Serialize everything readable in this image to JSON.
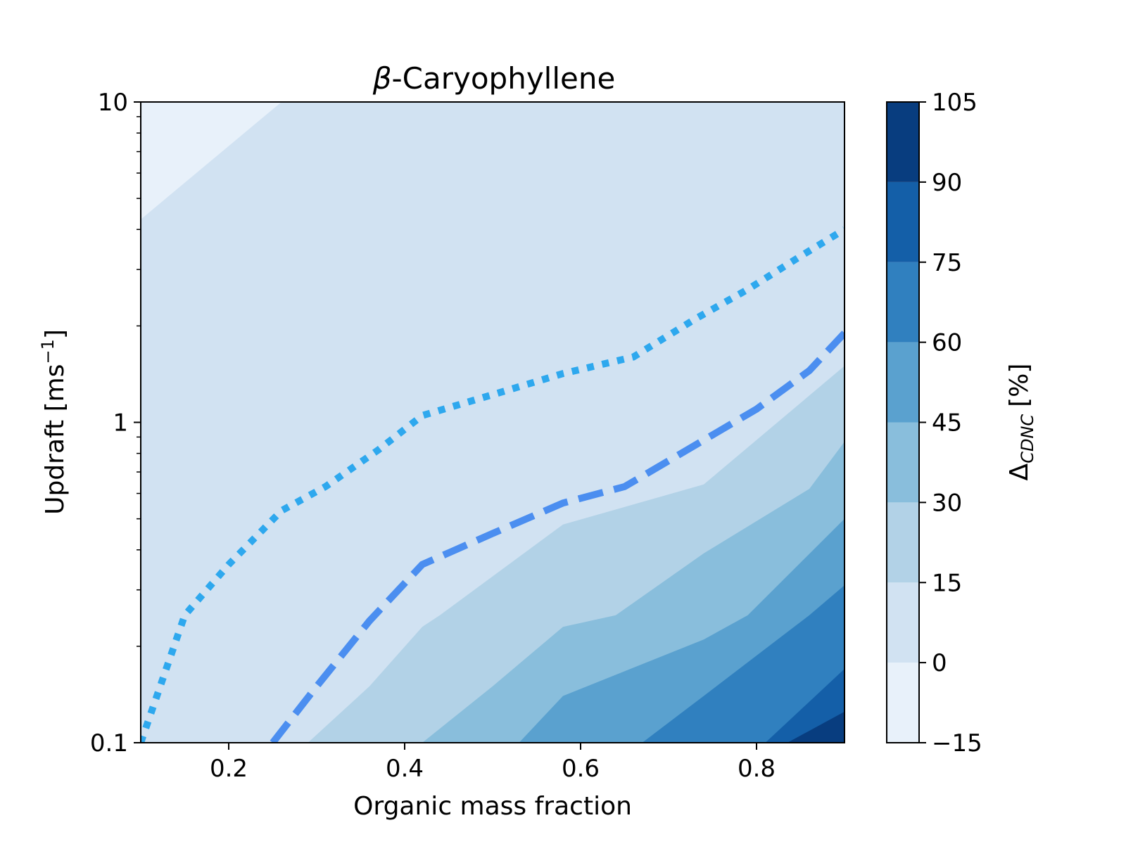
{
  "chart_data": {
    "type": "contourf",
    "title": {
      "italic_prefix": "β",
      "text": "-Caryophyllene"
    },
    "xlabel": "Organic mass fraction",
    "ylabel": {
      "text": "Updraft [ms",
      "sup": "−1",
      "close": "]"
    },
    "xlim": [
      0.1,
      0.9
    ],
    "ylim": [
      0.1,
      10
    ],
    "yscale": "log",
    "x_ticks": [
      0.2,
      0.4,
      0.6,
      0.8
    ],
    "x_tick_labels": [
      "0.2",
      "0.4",
      "0.6",
      "0.8"
    ],
    "y_ticks": [
      0.1,
      1,
      10
    ],
    "y_tick_labels": [
      "0.1",
      "1",
      "10"
    ],
    "colorbar": {
      "label_main": "Δ",
      "label_sub": "CDNC",
      "label_unit": "[%]",
      "levels": [
        -15,
        0,
        15,
        30,
        45,
        60,
        75,
        90,
        105
      ],
      "tick_labels": [
        "−15",
        "0",
        "15",
        "30",
        "45",
        "60",
        "75",
        "90",
        "105"
      ],
      "colors": [
        "#e8f1fa",
        "#d1e2f2",
        "#b2d2e7",
        "#89bedc",
        "#5aa1cf",
        "#3080bf",
        "#145fa8",
        "#083d7f"
      ]
    },
    "filled_levels": [
      {
        "range": [
          -15,
          0
        ],
        "color": "#e8f1fa",
        "boundary": [
          [
            0.1,
            4.3
          ],
          [
            0.26,
            10
          ]
        ]
      },
      {
        "range": [
          0,
          15
        ],
        "color": "#d1e2f2",
        "boundary": [
          [
            0.15,
            0.1
          ],
          [
            0.2,
            0.16
          ],
          [
            0.26,
            0.32
          ],
          [
            0.42,
            0.6
          ],
          [
            0.44,
            0.62
          ],
          [
            0.58,
            1.1
          ],
          [
            0.75,
            1.5
          ],
          [
            0.77,
            1.6
          ],
          [
            0.9,
            3.3
          ]
        ]
      },
      {
        "range": [
          15,
          30
        ],
        "color": "#b2d2e7",
        "boundary": [
          [
            0.29,
            0.1
          ],
          [
            0.36,
            0.15
          ],
          [
            0.42,
            0.23
          ],
          [
            0.44,
            0.25
          ],
          [
            0.58,
            0.48
          ],
          [
            0.74,
            0.64
          ],
          [
            0.9,
            1.5
          ]
        ]
      },
      {
        "range": [
          30,
          45
        ],
        "color": "#89bedc",
        "boundary": [
          [
            0.42,
            0.1
          ],
          [
            0.5,
            0.15
          ],
          [
            0.58,
            0.23
          ],
          [
            0.64,
            0.25
          ],
          [
            0.74,
            0.39
          ],
          [
            0.86,
            0.62
          ],
          [
            0.9,
            0.87
          ]
        ]
      },
      {
        "range": [
          45,
          60
        ],
        "color": "#5aa1cf",
        "boundary": [
          [
            0.53,
            0.1
          ],
          [
            0.58,
            0.14
          ],
          [
            0.74,
            0.21
          ],
          [
            0.79,
            0.25
          ],
          [
            0.9,
            0.5
          ]
        ]
      },
      {
        "range": [
          60,
          75
        ],
        "color": "#3080bf",
        "boundary": [
          [
            0.67,
            0.1
          ],
          [
            0.74,
            0.14
          ],
          [
            0.86,
            0.25
          ],
          [
            0.9,
            0.31
          ]
        ]
      },
      {
        "range": [
          75,
          90
        ],
        "color": "#145fa8",
        "boundary": [
          [
            0.81,
            0.1
          ],
          [
            0.9,
            0.17
          ]
        ]
      }
    ],
    "lines": [
      {
        "style": "dotted",
        "color": "#2ea8ee",
        "points": [
          [
            0.1,
            0.1
          ],
          [
            0.15,
            0.25
          ],
          [
            0.2,
            0.36
          ],
          [
            0.26,
            0.53
          ],
          [
            0.31,
            0.63
          ],
          [
            0.37,
            0.82
          ],
          [
            0.42,
            1.05
          ],
          [
            0.5,
            1.22
          ],
          [
            0.58,
            1.42
          ],
          [
            0.66,
            1.6
          ],
          [
            0.73,
            2.1
          ],
          [
            0.79,
            2.6
          ],
          [
            0.85,
            3.3
          ],
          [
            0.9,
            4.0
          ]
        ]
      },
      {
        "style": "dashed",
        "color": "#4b8ef0",
        "points": [
          [
            0.25,
            0.1
          ],
          [
            0.3,
            0.15
          ],
          [
            0.36,
            0.24
          ],
          [
            0.42,
            0.36
          ],
          [
            0.5,
            0.45
          ],
          [
            0.58,
            0.56
          ],
          [
            0.65,
            0.63
          ],
          [
            0.74,
            0.88
          ],
          [
            0.8,
            1.1
          ],
          [
            0.86,
            1.45
          ],
          [
            0.9,
            1.9
          ]
        ]
      }
    ]
  }
}
